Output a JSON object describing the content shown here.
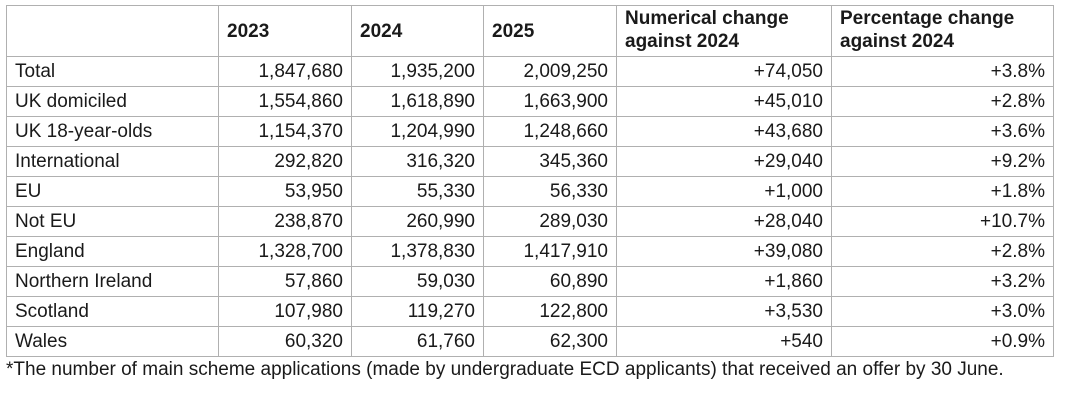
{
  "table": {
    "headers": [
      "",
      "2023",
      "2024",
      "2025",
      "Numerical change against 2024",
      "Percentage change against 2024"
    ],
    "rows": [
      {
        "label": "Total",
        "y2023": "1,847,680",
        "y2024": "1,935,200",
        "y2025": "2,009,250",
        "num_change": "+74,050",
        "pct_change": "+3.8%"
      },
      {
        "label": "UK domiciled",
        "y2023": "1,554,860",
        "y2024": "1,618,890",
        "y2025": "1,663,900",
        "num_change": "+45,010",
        "pct_change": "+2.8%"
      },
      {
        "label": "UK 18-year-olds",
        "y2023": "1,154,370",
        "y2024": "1,204,990",
        "y2025": "1,248,660",
        "num_change": "+43,680",
        "pct_change": "+3.6%"
      },
      {
        "label": "International",
        "y2023": "292,820",
        "y2024": "316,320",
        "y2025": "345,360",
        "num_change": "+29,040",
        "pct_change": "+9.2%"
      },
      {
        "label": "EU",
        "y2023": "53,950",
        "y2024": "55,330",
        "y2025": "56,330",
        "num_change": "+1,000",
        "pct_change": "+1.8%"
      },
      {
        "label": "Not EU",
        "y2023": "238,870",
        "y2024": "260,990",
        "y2025": "289,030",
        "num_change": "+28,040",
        "pct_change": "+10.7%"
      },
      {
        "label": "England",
        "y2023": "1,328,700",
        "y2024": "1,378,830",
        "y2025": "1,417,910",
        "num_change": "+39,080",
        "pct_change": "+2.8%"
      },
      {
        "label": "Northern Ireland",
        "y2023": "57,860",
        "y2024": "59,030",
        "y2025": "60,890",
        "num_change": "+1,860",
        "pct_change": "+3.2%"
      },
      {
        "label": "Scotland",
        "y2023": "107,980",
        "y2024": "119,270",
        "y2025": "122,800",
        "num_change": "+3,530",
        "pct_change": "+3.0%"
      },
      {
        "label": "Wales",
        "y2023": "60,320",
        "y2024": "61,760",
        "y2025": "62,300",
        "num_change": "+540",
        "pct_change": "+0.9%"
      }
    ]
  },
  "footnote": "*The number of main scheme applications (made by undergraduate ECD applicants) that received an offer by 30 June."
}
